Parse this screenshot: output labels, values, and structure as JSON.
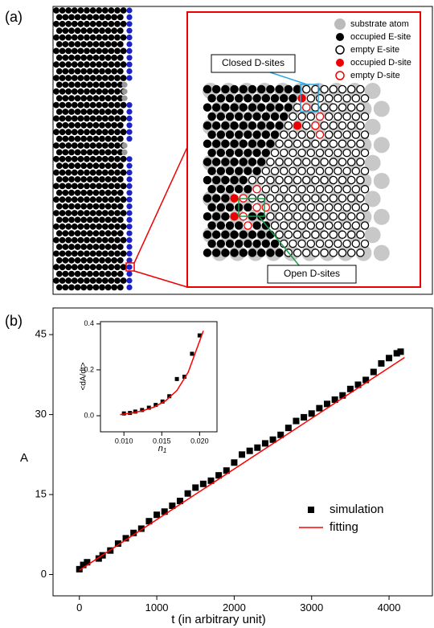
{
  "panel_labels": [
    "(a)",
    "(b)"
  ],
  "diagram": {
    "legend": [
      "substrate atom",
      "occupied E-site",
      "empty E-site",
      "occupied D-site",
      "empty D-site"
    ],
    "callouts": [
      "Closed D-sites",
      "Open D-sites"
    ]
  },
  "chart_data": [
    {
      "type": "scatter",
      "xlabel": "t (in arbitrary unit)",
      "ylabel": "A",
      "xlim": [
        -340,
        4560
      ],
      "ylim": [
        -4,
        50
      ],
      "xticks": [
        0,
        1000,
        2000,
        3000,
        4000
      ],
      "yticks": [
        0,
        15,
        30,
        45
      ],
      "legend": "right",
      "series": [
        {
          "name": "simulation",
          "type": "scatter",
          "marker": "square",
          "color": "#000000",
          "x": [
            0,
            50,
            100,
            250,
            300,
            400,
            500,
            600,
            700,
            800,
            900,
            1000,
            1100,
            1200,
            1300,
            1400,
            1500,
            1600,
            1700,
            1800,
            1900,
            2000,
            2100,
            2200,
            2300,
            2400,
            2500,
            2600,
            2700,
            2800,
            2900,
            3000,
            3100,
            3200,
            3300,
            3400,
            3500,
            3600,
            3700,
            3800,
            3900,
            4000,
            4100,
            4150
          ],
          "values": [
            1.0,
            1.8,
            2.3,
            3.0,
            3.6,
            4.5,
            5.8,
            6.8,
            7.8,
            8.6,
            10.0,
            11.2,
            11.8,
            12.9,
            13.8,
            15.2,
            16.3,
            17.0,
            17.6,
            18.6,
            19.5,
            21.0,
            22.5,
            23.2,
            23.8,
            24.6,
            25.3,
            26.2,
            27.5,
            28.8,
            29.5,
            30.2,
            31.2,
            32.0,
            32.8,
            33.6,
            34.8,
            35.6,
            36.5,
            38.0,
            39.6,
            40.6,
            41.5,
            41.8
          ]
        },
        {
          "name": "fitting",
          "type": "line",
          "color": "#ff0000",
          "x": [
            0,
            4200
          ],
          "values": [
            0.8,
            40.7
          ]
        }
      ]
    },
    {
      "type": "scatter",
      "xlabel": "n",
      "xlabel_subscript": "1",
      "ylabel": "<dA/dt>",
      "xlim": [
        0.0069,
        0.0223
      ],
      "ylim": [
        -0.07,
        0.41
      ],
      "xticks": [
        {
          "value": 0.01,
          "label": "0.010"
        },
        {
          "value": 0.015,
          "label": "0.015"
        },
        {
          "value": 0.02,
          "label": "0.020"
        }
      ],
      "yticks": [
        {
          "value": 0,
          "label": "0.0"
        },
        {
          "value": 0.2,
          "label": "0.2"
        },
        {
          "value": 0.4,
          "label": "0.4"
        }
      ],
      "series": [
        {
          "type": "scatter",
          "marker": "square",
          "color": "#000000",
          "x": [
            0.01,
            0.0108,
            0.0115,
            0.0124,
            0.0133,
            0.0142,
            0.0151,
            0.016,
            0.017,
            0.018,
            0.019,
            0.02
          ],
          "values": [
            0.01,
            0.012,
            0.018,
            0.025,
            0.035,
            0.047,
            0.062,
            0.085,
            0.16,
            0.17,
            0.27,
            0.35
          ]
        },
        {
          "type": "line",
          "color": "#ff0000",
          "x": [
            0.0095,
            0.011,
            0.0125,
            0.014,
            0.0155,
            0.017,
            0.0185,
            0.0205
          ],
          "values": [
            0.005,
            0.012,
            0.022,
            0.038,
            0.065,
            0.11,
            0.19,
            0.37
          ]
        }
      ]
    }
  ]
}
